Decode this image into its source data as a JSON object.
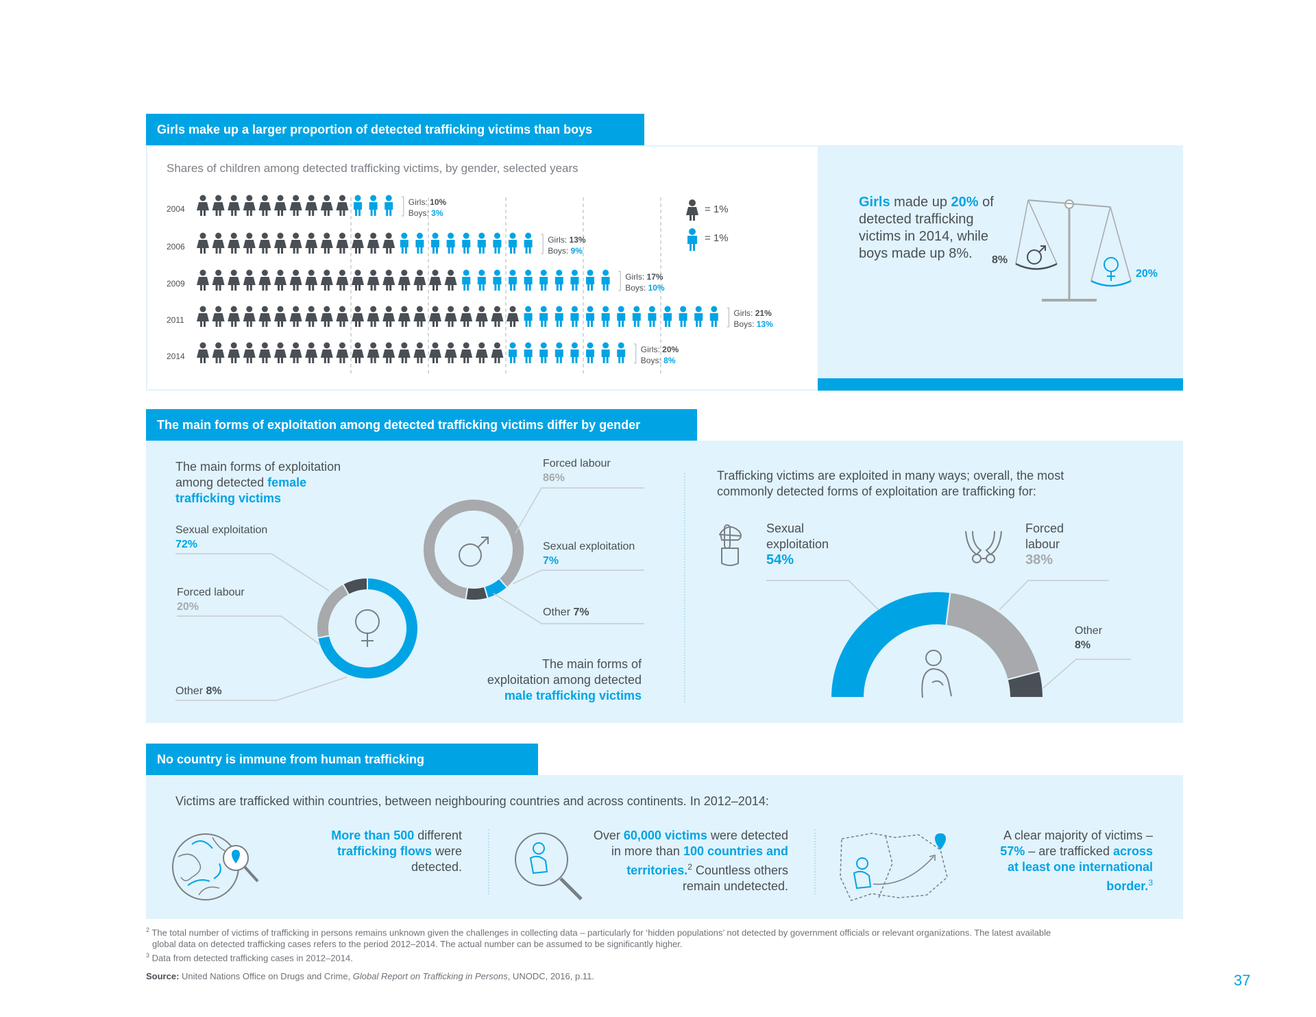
{
  "section1": {
    "header": "Girls make up a larger proportion of detected trafficking victims than boys",
    "subtitle": "Shares of children among detected trafficking victims, by gender, selected years",
    "legend": {
      "girl_label": "= 1%",
      "boy_label": "= 1%"
    },
    "callout": {
      "girls_word": "Girls",
      "made_up": " made up ",
      "girls_pct": "20%",
      "rest": "of detected trafficking victims in 2014, while boys made up 8%."
    },
    "scale": {
      "boys_pct": "8%",
      "girls_pct": "20%"
    }
  },
  "chart_data": [
    {
      "type": "bar",
      "categories": [
        "2004",
        "2006",
        "2009",
        "2011",
        "2014"
      ],
      "series": [
        {
          "name": "Girls",
          "values": [
            10,
            13,
            17,
            21,
            20
          ]
        },
        {
          "name": "Boys",
          "values": [
            3,
            9,
            10,
            13,
            8
          ]
        }
      ],
      "labels": {
        "girls": "Girls: ",
        "boys": "Boys: "
      }
    },
    {
      "type": "pie",
      "labels": [
        "Sexual exploitation",
        "Forced labour",
        "Other"
      ],
      "values": [
        72,
        20,
        8
      ]
    },
    {
      "type": "pie",
      "labels": [
        "Forced labour",
        "Sexual exploitation",
        "Other"
      ],
      "values": [
        86,
        7,
        7
      ]
    },
    {
      "type": "pie",
      "labels": [
        "Sexual exploitation",
        "Forced labour",
        "Other"
      ],
      "values": [
        54,
        38,
        8
      ]
    }
  ],
  "section2": {
    "header": "The main forms of exploitation among detected trafficking victims differ by gender",
    "female_title_1": "The main forms of exploitation",
    "female_title_2": "among detected ",
    "female_title_blue_1": "female",
    "female_title_blue_2": "trafficking victims",
    "female": {
      "sexual_label": "Sexual exploitation",
      "sexual_pct": "72%",
      "forced_label": "Forced labour",
      "forced_pct": "20%",
      "other_label": "Other ",
      "other_pct": "8%"
    },
    "male": {
      "forced_label": "Forced labour",
      "forced_pct": "86%",
      "sexual_label": "Sexual exploitation",
      "sexual_pct": "7%",
      "other_label": "Other ",
      "other_pct": "7%"
    },
    "male_title_1": "The main forms of",
    "male_title_2": "exploitation among detected",
    "male_title_blue": "male trafficking victims",
    "overall_intro_1": "Trafficking victims are exploited in many ways; overall, the most",
    "overall_intro_2": "commonly detected forms of exploitation are trafficking for:",
    "overall": {
      "sexual_label_1": "Sexual",
      "sexual_label_2": "exploitation",
      "sexual_pct": "54%",
      "forced_label_1": "Forced",
      "forced_label_2": "labour",
      "forced_pct": "38%",
      "other_label": "Other",
      "other_pct": "8%"
    }
  },
  "section3": {
    "header": "No country is immune from human trafficking",
    "intro": "Victims are trafficked within countries, between neighbouring countries and across continents. In 2012–2014:",
    "flows": {
      "b1": "More than 500",
      "t1": " different",
      "b2": "trafficking flows",
      "t2": " were",
      "t3": "detected."
    },
    "victims": {
      "t1": "Over ",
      "b1": "60,000 victims",
      "t2": " were detected",
      "t3": "in more than ",
      "b2": "100 countries and",
      "b3": "territories.",
      "sup": "2",
      "t4": " Countless others",
      "t5": "remain undetected."
    },
    "border": {
      "t1": "A clear majority of victims –",
      "b1": "57%",
      "t2": " – are trafficked ",
      "b2": "across",
      "b3": "at least one international",
      "b4": "border.",
      "sup": "3"
    }
  },
  "footnotes": {
    "fn2_mark": "2",
    "fn2_line1": "The total number of victims of trafficking in persons remains unknown given the challenges in collecting data – particularly for ‘hidden populations’ not detected by government officials or relevant organizations. The latest available",
    "fn2_line2": "global data on detected trafficking cases refers to the period 2012–2014. The actual number can be assumed to be significantly higher.",
    "fn3_mark": "3",
    "fn3": "Data from detected trafficking cases in 2012–2014.",
    "source_label": "Source:",
    "source_text": " United Nations Office on Drugs and Crime, ",
    "source_italic": "Global Report on Trafficking in Persons",
    "source_end": ", UNODC, 2016, p.11."
  },
  "page_number": "37",
  "colors": {
    "blue": "#00a4e4",
    "dark": "#4a4f55",
    "gray": "#a7a9ac",
    "light": "#e1f3fc"
  }
}
